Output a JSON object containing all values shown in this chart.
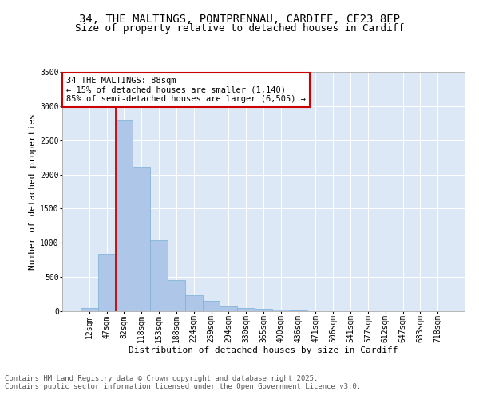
{
  "title_line1": "34, THE MALTINGS, PONTPRENNAU, CARDIFF, CF23 8EP",
  "title_line2": "Size of property relative to detached houses in Cardiff",
  "xlabel": "Distribution of detached houses by size in Cardiff",
  "ylabel": "Number of detached properties",
  "categories": [
    "12sqm",
    "47sqm",
    "82sqm",
    "118sqm",
    "153sqm",
    "188sqm",
    "224sqm",
    "259sqm",
    "294sqm",
    "330sqm",
    "365sqm",
    "400sqm",
    "436sqm",
    "471sqm",
    "506sqm",
    "541sqm",
    "577sqm",
    "612sqm",
    "647sqm",
    "683sqm",
    "718sqm"
  ],
  "values": [
    50,
    840,
    2790,
    2110,
    1040,
    460,
    235,
    155,
    65,
    45,
    35,
    20,
    10,
    5,
    5,
    0,
    0,
    0,
    0,
    0,
    0
  ],
  "bar_color": "#aec6e8",
  "bar_edge_color": "#7aafd4",
  "vline_color": "#cc0000",
  "annotation_text": "34 THE MALTINGS: 88sqm\n← 15% of detached houses are smaller (1,140)\n85% of semi-detached houses are larger (6,505) →",
  "annotation_box_color": "#ffffff",
  "annotation_box_edge_color": "#cc0000",
  "ylim": [
    0,
    3500
  ],
  "yticks": [
    0,
    500,
    1000,
    1500,
    2000,
    2500,
    3000,
    3500
  ],
  "background_color": "#dce8f5",
  "footer_line1": "Contains HM Land Registry data © Crown copyright and database right 2025.",
  "footer_line2": "Contains public sector information licensed under the Open Government Licence v3.0.",
  "title_fontsize": 10,
  "subtitle_fontsize": 9,
  "axis_label_fontsize": 8,
  "tick_fontsize": 7,
  "footer_fontsize": 6.5,
  "annotation_fontsize": 7.5
}
